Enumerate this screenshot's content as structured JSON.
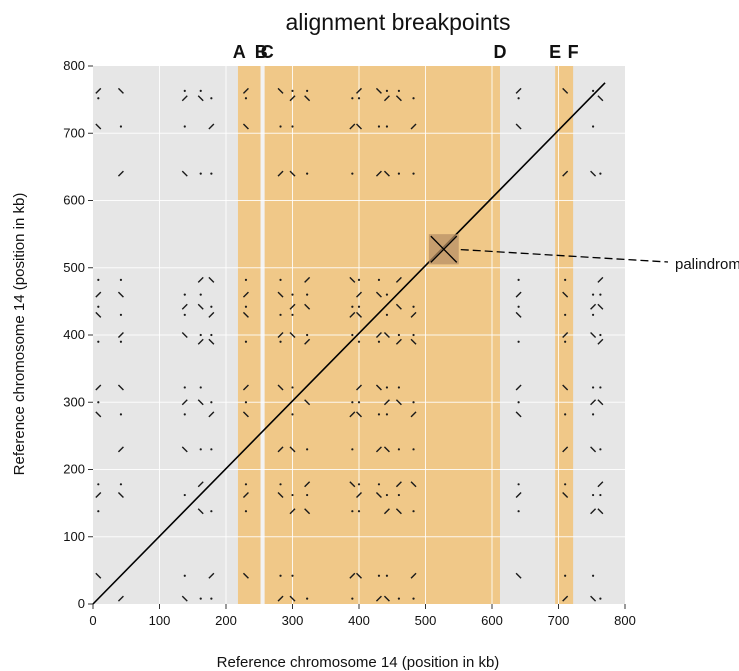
{
  "chart_data": {
    "type": "scatter",
    "title": "alignment breakpoints",
    "xlabel": "Reference chromosome 14 (position in kb)",
    "ylabel": "Reference chromosome 14 (position in kb)",
    "xlim": [
      0,
      800
    ],
    "ylim": [
      0,
      800
    ],
    "xticks": [
      0,
      100,
      200,
      300,
      400,
      500,
      600,
      700,
      800
    ],
    "yticks": [
      0,
      100,
      200,
      300,
      400,
      500,
      600,
      700,
      800
    ],
    "grid": true,
    "background_color": "#e6e6e6",
    "region_colors": {
      "breakpoint_region": "#f0c888",
      "gap": "#f3f3f3"
    },
    "breakpoints": [
      {
        "label": "A",
        "x": 220
      },
      {
        "label": "B",
        "x": 253
      },
      {
        "label": "C",
        "x": 262
      },
      {
        "label": "D",
        "x": 612
      },
      {
        "label": "E",
        "x": 695
      },
      {
        "label": "F",
        "x": 722
      }
    ],
    "highlight_regions": [
      {
        "x": [
          218,
          252
        ]
      },
      {
        "x": [
          258,
          612
        ]
      },
      {
        "x": [
          695,
          722
        ]
      }
    ],
    "gap_regions": [
      {
        "x": [
          252,
          258
        ]
      }
    ],
    "diagonal": {
      "from": [
        0,
        0
      ],
      "to": [
        770,
        775
      ]
    },
    "palindrome": {
      "label": "palindrome",
      "x_range": [
        505,
        550
      ],
      "y_range": [
        505,
        550
      ],
      "center": [
        527,
        527
      ]
    },
    "repeat_positions_kb": [
      8,
      42,
      138,
      162,
      178,
      230,
      282,
      300,
      322,
      390,
      400,
      430,
      442,
      460,
      482,
      640,
      710,
      752,
      763
    ]
  }
}
